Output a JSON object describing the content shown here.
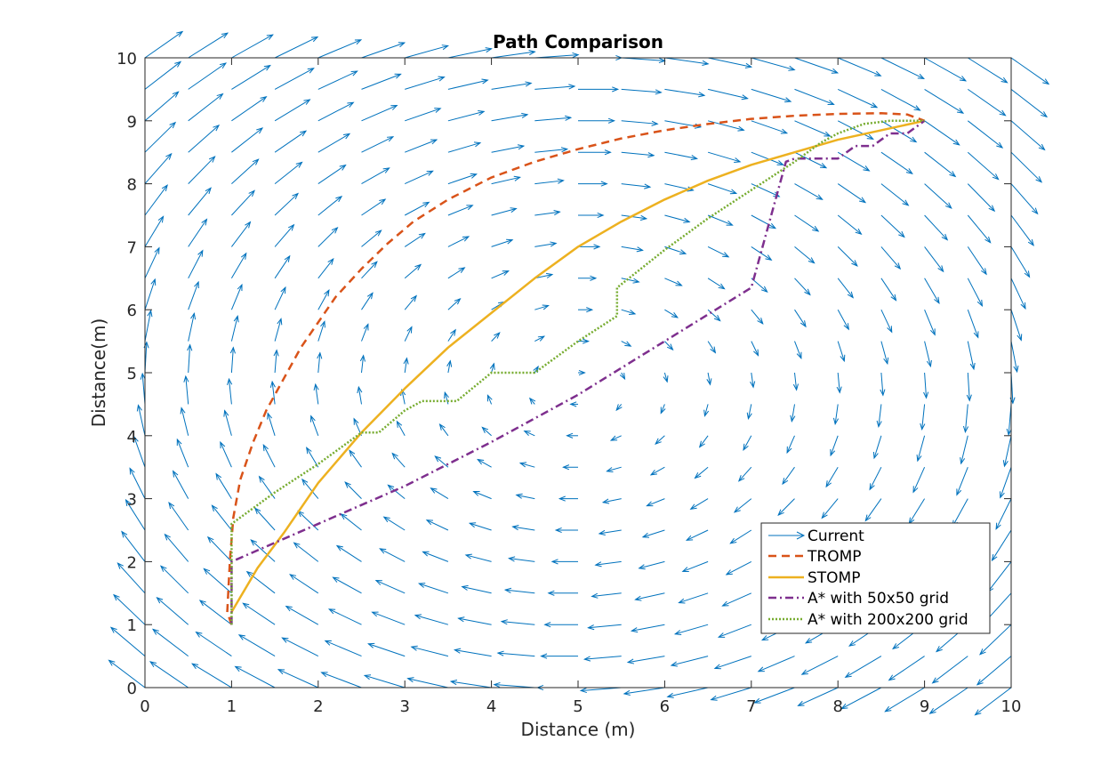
{
  "chart_data": {
    "type": "line",
    "title": "Path Comparison",
    "xlabel": "Distance (m)",
    "ylabel": "Distance(m)",
    "xlim": [
      0,
      10
    ],
    "ylim": [
      0,
      10
    ],
    "xticks": [
      "0",
      "1",
      "2",
      "3",
      "4",
      "5",
      "6",
      "7",
      "8",
      "9",
      "10"
    ],
    "yticks": [
      "0",
      "1",
      "2",
      "3",
      "4",
      "5",
      "6",
      "7",
      "8",
      "9",
      "10"
    ],
    "grid": false,
    "legend_position": "bottom-right",
    "current_field": {
      "name": "Current",
      "color": "#0072BD",
      "description": "clockwise vortex centered near (5, 4.8)",
      "center": [
        5,
        4.8
      ],
      "grid_x": [
        0,
        0.5,
        1,
        1.5,
        2,
        2.5,
        3,
        3.5,
        4,
        4.5,
        5,
        5.5,
        6,
        6.5,
        7,
        7.5,
        8,
        8.5,
        9,
        9.5,
        10
      ],
      "grid_y": [
        0,
        0.5,
        1,
        1.5,
        2,
        2.5,
        3,
        3.5,
        4,
        4.5,
        5,
        5.5,
        6,
        6.5,
        7,
        7.5,
        8,
        8.5,
        9,
        9.5,
        10
      ]
    },
    "series": [
      {
        "name": "TROMP",
        "color": "#D95319",
        "style": "dashed",
        "x": [
          1,
          0.95,
          0.98,
          1.02,
          1.1,
          1.25,
          1.4,
          1.6,
          1.8,
          2.0,
          2.2,
          2.5,
          2.8,
          3.1,
          3.5,
          4.0,
          4.5,
          5.0,
          5.5,
          6.0,
          6.5,
          7.0,
          7.5,
          8.0,
          8.5,
          8.8,
          9
        ],
        "y": [
          1,
          1.2,
          2.0,
          2.7,
          3.3,
          3.9,
          4.4,
          4.9,
          5.4,
          5.8,
          6.2,
          6.65,
          7.05,
          7.4,
          7.75,
          8.1,
          8.35,
          8.55,
          8.72,
          8.85,
          8.95,
          9.03,
          9.08,
          9.11,
          9.12,
          9.1,
          9
        ]
      },
      {
        "name": "STOMP",
        "color": "#EDB120",
        "style": "solid",
        "x": [
          1,
          1.3,
          1.6,
          2.0,
          2.5,
          3.0,
          3.5,
          4.0,
          4.5,
          5.0,
          5.5,
          6.0,
          6.5,
          7.0,
          7.5,
          8.0,
          8.5,
          9
        ],
        "y": [
          1.2,
          1.9,
          2.45,
          3.25,
          4.05,
          4.75,
          5.4,
          5.95,
          6.5,
          7.0,
          7.4,
          7.75,
          8.05,
          8.3,
          8.5,
          8.7,
          8.85,
          9
        ]
      },
      {
        "name": "A* with 50x50 grid",
        "color": "#7E2F8E",
        "style": "dashdot",
        "x": [
          1,
          1,
          1,
          2,
          3,
          4,
          5,
          6,
          7,
          7.4,
          7.5,
          8,
          8.2,
          8.4,
          8.6,
          8.8,
          9
        ],
        "y": [
          1,
          1.5,
          2.0,
          2.6,
          3.2,
          3.9,
          4.65,
          5.5,
          6.35,
          8.35,
          8.4,
          8.4,
          8.6,
          8.6,
          8.8,
          8.8,
          9
        ]
      },
      {
        "name": "A* with 200x200 grid",
        "color": "#77AC30",
        "style": "dotted",
        "x": [
          1,
          1,
          1,
          1.5,
          2.0,
          2.5,
          2.7,
          3.0,
          3.2,
          3.6,
          4.0,
          4.5,
          5.0,
          5.45,
          5.45,
          6.0,
          6.5,
          7.0,
          7.5,
          7.8,
          8.0,
          8.3,
          8.6,
          9
        ],
        "y": [
          1,
          2.0,
          2.6,
          3.1,
          3.55,
          4.05,
          4.05,
          4.4,
          4.55,
          4.55,
          5.0,
          5.0,
          5.5,
          5.9,
          6.35,
          6.95,
          7.45,
          7.9,
          8.35,
          8.65,
          8.8,
          8.95,
          9.0,
          9
        ]
      }
    ]
  }
}
